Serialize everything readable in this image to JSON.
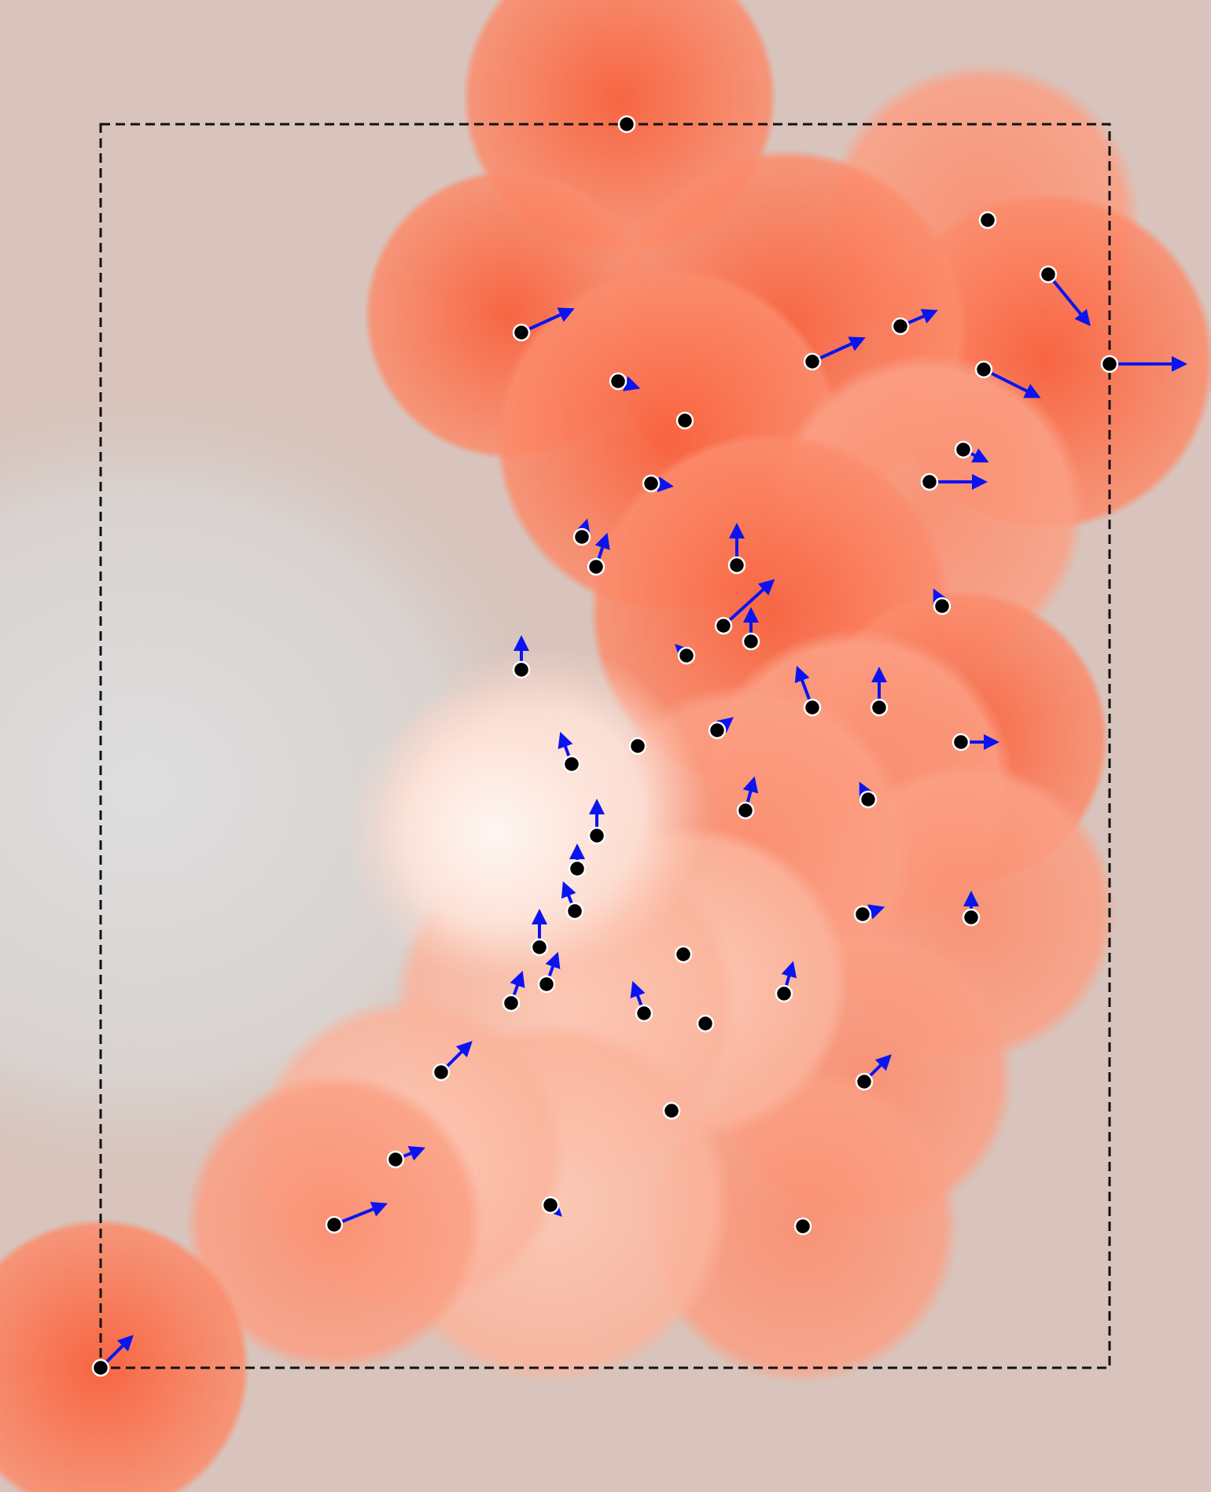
{
  "colors": {
    "background": "#d8c4bc",
    "cold_region": "#dcdcdc",
    "hot_core": "#fa6e4c",
    "hot_soft": "#fb9d82",
    "hot_pale": "#fbd2c2",
    "white_core": "#fff3ee",
    "node_fill": "#000000",
    "node_stroke": "#ffffff",
    "arrow": "#0a14f0",
    "frame": "#111111"
  },
  "icons": {
    "node": "filled-circle-icon",
    "vector": "arrow-icon"
  },
  "nodes": [
    {
      "id": "n01",
      "dx": 0,
      "dy": 0
    },
    {
      "id": "n02",
      "dx": 0,
      "dy": 0
    },
    {
      "id": "n03",
      "dx": 0.45,
      "dy": 0.55
    },
    {
      "id": "n04",
      "dx": 0.55,
      "dy": -0.25
    },
    {
      "id": "n05",
      "dx": 0.35,
      "dy": -0.15
    },
    {
      "id": "n06",
      "dx": 0.55,
      "dy": -0.25
    },
    {
      "id": "n07",
      "dx": 0.6,
      "dy": 0.3
    },
    {
      "id": "n08",
      "dx": 0.85,
      "dy": 0
    },
    {
      "id": "n09",
      "dx": 0.15,
      "dy": 0.05
    },
    {
      "id": "n10",
      "dx": 0,
      "dy": 0
    },
    {
      "id": "n11",
      "dx": 0.15,
      "dy": 0.02
    },
    {
      "id": "n12",
      "dx": 0.2,
      "dy": 0.1
    },
    {
      "id": "n13",
      "dx": 0.6,
      "dy": 0
    },
    {
      "id": "n14",
      "dx": 0.03,
      "dy": -0.1
    },
    {
      "id": "n15",
      "dx": 0.1,
      "dy": -0.3
    },
    {
      "id": "n16",
      "dx": 0,
      "dy": -0.4
    },
    {
      "id": "n17",
      "dx": -0.05,
      "dy": -0.1
    },
    {
      "id": "n18",
      "dx": 0.55,
      "dy": -0.5
    },
    {
      "id": "n19",
      "dx": 0,
      "dy": -0.3
    },
    {
      "id": "n20",
      "dx": 0,
      "dy": -0.3
    },
    {
      "id": "n21",
      "dx": -0.05,
      "dy": -0.05
    },
    {
      "id": "n22",
      "dx": -0.15,
      "dy": -0.4
    },
    {
      "id": "n23",
      "dx": 0,
      "dy": -0.38
    },
    {
      "id": "n24",
      "dx": 0.1,
      "dy": -0.08
    },
    {
      "id": "n25",
      "dx": 0.35,
      "dy": 0
    },
    {
      "id": "n26",
      "dx": -0.1,
      "dy": -0.28
    },
    {
      "id": "n27",
      "dx": 0,
      "dy": 0
    },
    {
      "id": "n28",
      "dx": 0.08,
      "dy": -0.3
    },
    {
      "id": "n29",
      "dx": -0.05,
      "dy": -0.1
    },
    {
      "id": "n30",
      "dx": 0,
      "dy": -0.33
    },
    {
      "id": "n31",
      "dx": 0,
      "dy": -0.18
    },
    {
      "id": "n32",
      "dx": -0.1,
      "dy": -0.25
    },
    {
      "id": "n33",
      "dx": 0.15,
      "dy": -0.05
    },
    {
      "id": "n34",
      "dx": 0,
      "dy": -0.2
    },
    {
      "id": "n35",
      "dx": 0,
      "dy": -0.35
    },
    {
      "id": "n36",
      "dx": 0,
      "dy": 0
    },
    {
      "id": "n37",
      "dx": 0.1,
      "dy": -0.28
    },
    {
      "id": "n38",
      "dx": 0.1,
      "dy": -0.28
    },
    {
      "id": "n39",
      "dx": -0.1,
      "dy": -0.28
    },
    {
      "id": "n40",
      "dx": 0.08,
      "dy": -0.28
    },
    {
      "id": "n41",
      "dx": 0,
      "dy": 0
    },
    {
      "id": "n42",
      "dx": 0.3,
      "dy": -0.3
    },
    {
      "id": "n43",
      "dx": 0.25,
      "dy": -0.25
    },
    {
      "id": "n44",
      "dx": 0,
      "dy": 0
    },
    {
      "id": "n45",
      "dx": 0.25,
      "dy": -0.1
    },
    {
      "id": "n46",
      "dx": 0.55,
      "dy": -0.22
    },
    {
      "id": "n47",
      "dx": 0.05,
      "dy": 0.05
    },
    {
      "id": "n48",
      "dx": 0,
      "dy": 0
    },
    {
      "id": "n49",
      "dx": 0.32,
      "dy": -0.32
    }
  ]
}
